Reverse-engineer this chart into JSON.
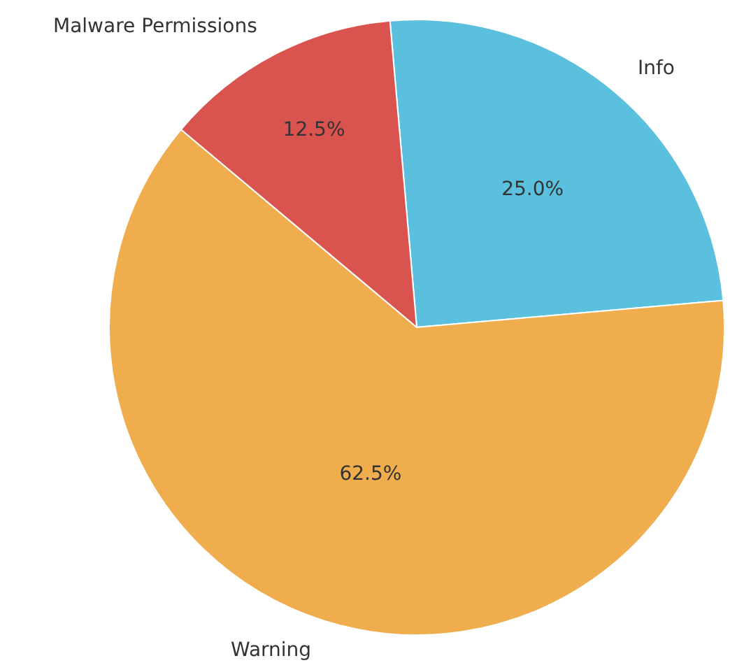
{
  "chart_data": {
    "type": "pie",
    "categories": [
      "Info",
      "Warning",
      "Malware Permissions"
    ],
    "values": [
      25,
      62.5,
      12.5
    ],
    "colors": [
      "#5bc0de",
      "#f0ad4e",
      "#d9534f"
    ],
    "value_labels": [
      "25.0%",
      "62.5%",
      "12.5%"
    ],
    "legend": false
  }
}
